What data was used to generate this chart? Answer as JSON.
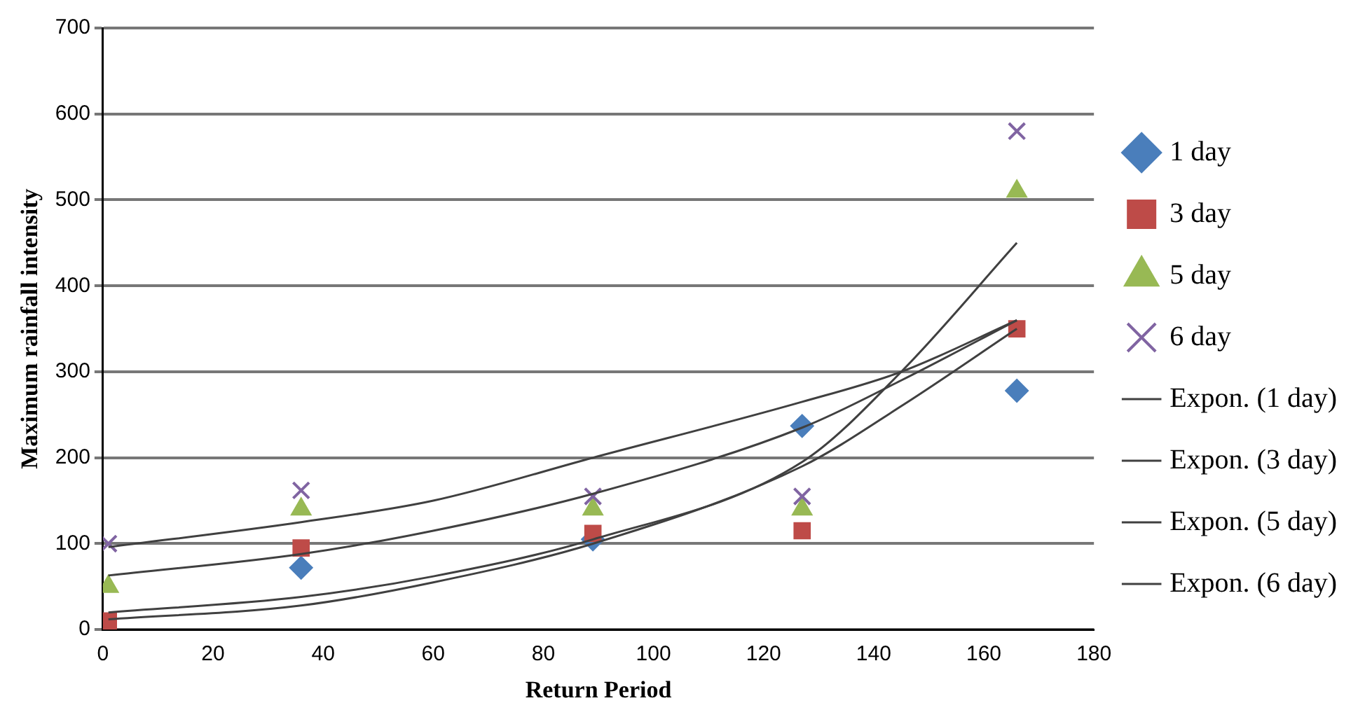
{
  "chart_data": {
    "type": "scatter",
    "xlabel": "Return Period",
    "ylabel": "Maximum rainfall intensity",
    "xlim": [
      0,
      180
    ],
    "xticks": [
      0,
      20,
      40,
      60,
      80,
      100,
      120,
      140,
      160,
      180
    ],
    "ylim": [
      0,
      700
    ],
    "yticks": [
      0,
      100,
      200,
      300,
      400,
      500,
      600,
      700
    ],
    "grid": "y",
    "legend": "right",
    "x": [
      1,
      36,
      89,
      127,
      166
    ],
    "series": [
      {
        "name": "1 day",
        "color": "#4a7ebb",
        "marker": "diamond",
        "values": [
          null,
          72,
          105,
          237,
          278
        ]
      },
      {
        "name": "3 day",
        "color": "#be4b48",
        "marker": "square",
        "values": [
          10,
          95,
          112,
          115,
          350
        ]
      },
      {
        "name": "5 day",
        "color": "#98b954",
        "marker": "triangle",
        "values": [
          50,
          140,
          140,
          140,
          510
        ]
      },
      {
        "name": "6 day",
        "color": "#8064a2",
        "marker": "cross",
        "values": [
          100,
          162,
          155,
          155,
          580
        ]
      },
      {
        "name": "Expon. (1 day)",
        "type": "line",
        "color": "#404040",
        "marker": "none",
        "x": [
          1,
          36,
          60,
          89,
          127,
          145,
          166
        ],
        "values": [
          12,
          28,
          55,
          100,
          190,
          260,
          350
        ]
      },
      {
        "name": "Expon. (3 day)",
        "type": "line",
        "color": "#404040",
        "marker": "none",
        "x": [
          1,
          36,
          60,
          89,
          127,
          145,
          166
        ],
        "values": [
          20,
          38,
          62,
          105,
          195,
          300,
          450
        ]
      },
      {
        "name": "Expon. (5 day)",
        "type": "line",
        "color": "#404040",
        "marker": "none",
        "x": [
          1,
          36,
          60,
          89,
          127,
          145,
          166
        ],
        "values": [
          63,
          88,
          115,
          158,
          235,
          290,
          360
        ]
      },
      {
        "name": "Expon. (6 day)",
        "type": "line",
        "color": "#404040",
        "marker": "none",
        "x": [
          1,
          36,
          60,
          89,
          127,
          145,
          166
        ],
        "values": [
          96,
          125,
          150,
          200,
          265,
          300,
          360
        ]
      }
    ]
  }
}
